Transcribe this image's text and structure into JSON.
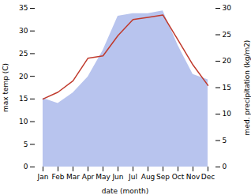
{
  "chart_data": {
    "type": "line",
    "categories": [
      "Jan",
      "Feb",
      "Mar",
      "Apr",
      "May",
      "Jun",
      "Jul",
      "Aug",
      "Sep",
      "Oct",
      "Nov",
      "Dec"
    ],
    "xlabel": "date (month)",
    "ylabel": "max temp (C)",
    "y2label": "med. precipitation (kg/m2)",
    "ylim": [
      0,
      35
    ],
    "yticks": [
      0,
      5,
      10,
      15,
      20,
      25,
      30,
      35
    ],
    "y2lim": [
      0,
      30
    ],
    "y2ticks": [
      0,
      5,
      10,
      15,
      20,
      25,
      30
    ],
    "grid": false,
    "series": [
      {
        "type": "area",
        "axis": "y2",
        "color": "#b8c4ee",
        "values": [
          13.0,
          12.0,
          14.0,
          17.0,
          22.0,
          28.5,
          29.0,
          29.0,
          29.5,
          23.0,
          17.5,
          16.5
        ]
      },
      {
        "type": "line",
        "color": "#c0392b",
        "values": [
          15.0,
          16.5,
          19.0,
          24.0,
          24.5,
          29.0,
          32.5,
          33.0,
          33.5,
          28.0,
          22.5,
          18.0
        ]
      }
    ]
  }
}
